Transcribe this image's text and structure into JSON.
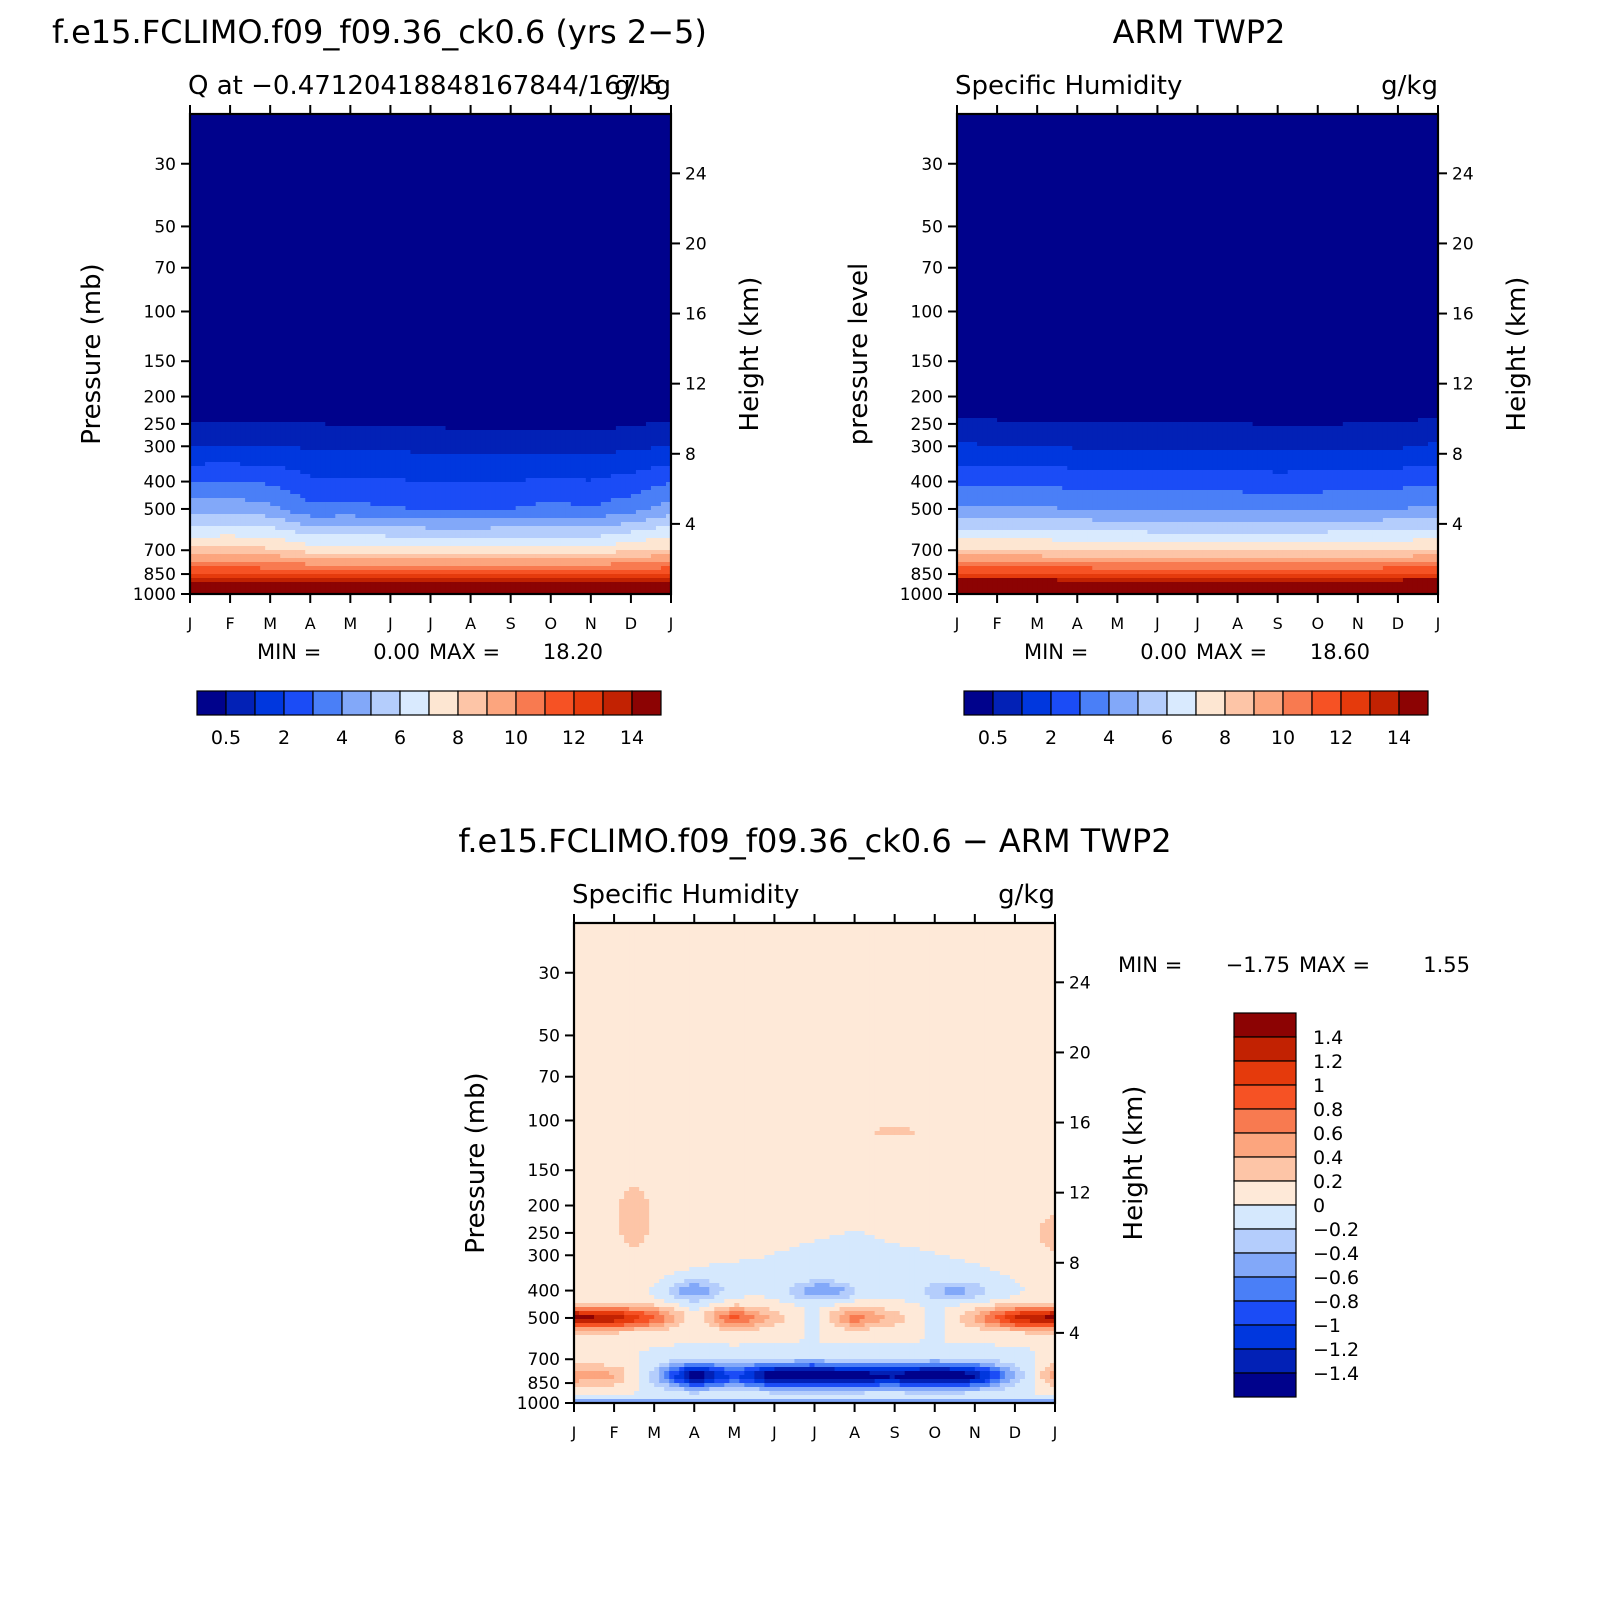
{
  "colors": {
    "seq": [
      "#00028c",
      "#0221b6",
      "#0037de",
      "#1b4cf6",
      "#4a7ff7",
      "#82a8f9",
      "#b4cdfc",
      "#d9eafe",
      "#fde6d2",
      "#fdc5a7",
      "#fca57e",
      "#f87a50",
      "#f65224",
      "#e53a0c",
      "#c22202",
      "#8c0303"
    ],
    "div": [
      "#00028c",
      "#0221b6",
      "#0037de",
      "#1b4cf6",
      "#4a7ff7",
      "#82a8f9",
      "#b4cdfc",
      "#d5e8fd",
      "#fee9d8",
      "#fdc5a7",
      "#fca57e",
      "#f87a50",
      "#f65224",
      "#e53a0c",
      "#c22202",
      "#8c0303"
    ]
  },
  "chart_data": [
    {
      "type": "heatmap",
      "panel": "model",
      "title": "f.e15.FCLIMO.f09_f09.36_ck0.6 (yrs 2-5)",
      "subtitle_left": "Q at -0.47120418848167844/167.5",
      "subtitle_right": "g/kg",
      "ylabel": "Pressure (mb)",
      "ylabel_right": "Height (km)",
      "x_ticks": [
        "J",
        "F",
        "M",
        "A",
        "M",
        "J",
        "J",
        "A",
        "S",
        "O",
        "N",
        "D",
        "J"
      ],
      "y_ticks": [
        "30",
        "50",
        "70",
        "100",
        "150",
        "200",
        "250",
        "300",
        "400",
        "500",
        "700",
        "850",
        "1000"
      ],
      "y_ticks_right": [
        "24",
        "20",
        "16",
        "12",
        "8",
        "4"
      ],
      "ylim": [
        1000,
        20
      ],
      "stats": {
        "min_label": "MIN =",
        "min": "0.00",
        "max_label": "MAX =",
        "max": "18.20"
      },
      "colorbar_ticks": [
        "0.5",
        "2",
        "4",
        "6",
        "8",
        "10",
        "12",
        "14"
      ],
      "contour_levels": [
        0.5,
        1,
        2,
        3,
        4,
        5,
        6,
        7,
        8,
        9,
        10,
        11,
        12,
        13,
        14
      ],
      "months": [
        1,
        2,
        3,
        4,
        5,
        6,
        7,
        8,
        9,
        10,
        11,
        12,
        13
      ],
      "q_300mb": [
        1.0,
        1.0,
        1.0,
        0.9,
        0.8,
        0.8,
        0.8,
        0.7,
        0.7,
        0.7,
        0.7,
        0.8,
        1.0
      ],
      "q_500mb": [
        4.5,
        4.6,
        4.3,
        3.2,
        3.3,
        3.1,
        2.9,
        2.9,
        3.0,
        3.3,
        3.1,
        3.6,
        4.5
      ],
      "q_700mb": [
        8.2,
        8.3,
        8.2,
        7.6,
        7.6,
        7.5,
        7.4,
        7.4,
        7.4,
        7.3,
        7.3,
        7.9,
        8.2
      ],
      "q_850mb": [
        12.0,
        12.1,
        11.9,
        11.7,
        11.7,
        11.6,
        11.5,
        11.5,
        11.5,
        11.6,
        11.6,
        11.9,
        12.0
      ],
      "q_1000mb": [
        18.2,
        18.1,
        17.8,
        17.5,
        17.2,
        17.1,
        17.0,
        17.0,
        17.1,
        17.1,
        17.2,
        17.6,
        18.2
      ]
    },
    {
      "type": "heatmap",
      "panel": "obs",
      "title": "ARM TWP2",
      "subtitle_left": "Specific Humidity",
      "subtitle_right": "g/kg",
      "ylabel": "pressure level",
      "ylabel_right": "Height (km)",
      "x_ticks": [
        "J",
        "F",
        "M",
        "A",
        "M",
        "J",
        "J",
        "A",
        "S",
        "O",
        "N",
        "D",
        "J"
      ],
      "y_ticks": [
        "30",
        "50",
        "70",
        "100",
        "150",
        "200",
        "250",
        "300",
        "400",
        "500",
        "700",
        "850",
        "1000"
      ],
      "y_ticks_right": [
        "24",
        "20",
        "16",
        "12",
        "8",
        "4"
      ],
      "ylim": [
        1000,
        20
      ],
      "stats": {
        "min_label": "MIN =",
        "min": "0.00",
        "max_label": "MAX =",
        "max": "18.60"
      },
      "colorbar_ticks": [
        "0.5",
        "2",
        "4",
        "6",
        "8",
        "10",
        "12",
        "14"
      ],
      "contour_levels": [
        0.5,
        1,
        2,
        3,
        4,
        5,
        6,
        7,
        8,
        9,
        10,
        11,
        12,
        13,
        14
      ],
      "months": [
        1,
        2,
        3,
        4,
        5,
        6,
        7,
        8,
        9,
        10,
        11,
        12,
        13
      ],
      "q_300mb": [
        1.1,
        1.0,
        1.0,
        0.9,
        0.9,
        0.9,
        0.9,
        0.9,
        0.8,
        0.8,
        0.9,
        0.9,
        1.1
      ],
      "q_500mb": [
        4.2,
        4.2,
        4.1,
        4.0,
        3.9,
        3.8,
        3.8,
        3.8,
        3.7,
        3.8,
        3.9,
        4.0,
        4.2
      ],
      "q_700mb": [
        8.1,
        8.1,
        8.0,
        7.9,
        7.8,
        7.7,
        7.7,
        7.7,
        7.7,
        7.7,
        7.8,
        7.9,
        8.1
      ],
      "q_850mb": [
        12.3,
        12.3,
        12.2,
        12.1,
        12.0,
        11.9,
        11.9,
        11.9,
        11.9,
        12.0,
        12.0,
        12.1,
        12.3
      ],
      "q_1000mb": [
        18.6,
        18.5,
        18.4,
        18.3,
        18.2,
        18.1,
        18.1,
        18.1,
        18.1,
        18.2,
        18.3,
        18.4,
        18.6
      ]
    },
    {
      "type": "heatmap",
      "panel": "difference",
      "title": "f.e15.FCLIMO.f09_f09.36_ck0.6 - ARM TWP2",
      "subtitle_left": "Specific Humidity",
      "subtitle_right": "g/kg",
      "ylabel": "Pressure (mb)",
      "ylabel_right": "Height (km)",
      "x_ticks": [
        "J",
        "F",
        "M",
        "A",
        "M",
        "J",
        "J",
        "A",
        "S",
        "O",
        "N",
        "D",
        "J"
      ],
      "y_ticks": [
        "30",
        "50",
        "70",
        "100",
        "150",
        "200",
        "250",
        "300",
        "400",
        "500",
        "700",
        "850",
        "1000"
      ],
      "y_ticks_right": [
        "24",
        "20",
        "16",
        "12",
        "8",
        "4"
      ],
      "ylim": [
        1000,
        20
      ],
      "stats": {
        "min_label": "MIN =",
        "min": "-1.75",
        "max_label": "MAX =",
        "max": "1.55"
      },
      "colorbar_ticks": [
        "1.4",
        "1.2",
        "1",
        "0.8",
        "0.6",
        "0.4",
        "0.2",
        "0",
        "-0.2",
        "-0.4",
        "-0.6",
        "-0.8",
        "-1",
        "-1.2",
        "-1.4"
      ],
      "contour_levels": [
        -1.4,
        -1.2,
        -1.0,
        -0.8,
        -0.6,
        -0.4,
        -0.2,
        0,
        0.2,
        0.4,
        0.6,
        0.8,
        1.0,
        1.2,
        1.4
      ],
      "months": [
        1,
        2,
        3,
        4,
        5,
        6,
        7,
        8,
        9,
        10,
        11,
        12,
        13
      ],
      "dq_500mb": [
        1.5,
        1.3,
        0.8,
        0.0,
        0.9,
        0.3,
        -0.1,
        0.7,
        0.3,
        -0.1,
        0.4,
        1.2,
        1.5
      ],
      "dq_800mb": [
        0.5,
        0.4,
        -0.3,
        -1.6,
        -0.9,
        -1.6,
        -1.7,
        -1.5,
        -1.4,
        -1.7,
        -1.4,
        -0.4,
        0.5
      ]
    }
  ]
}
